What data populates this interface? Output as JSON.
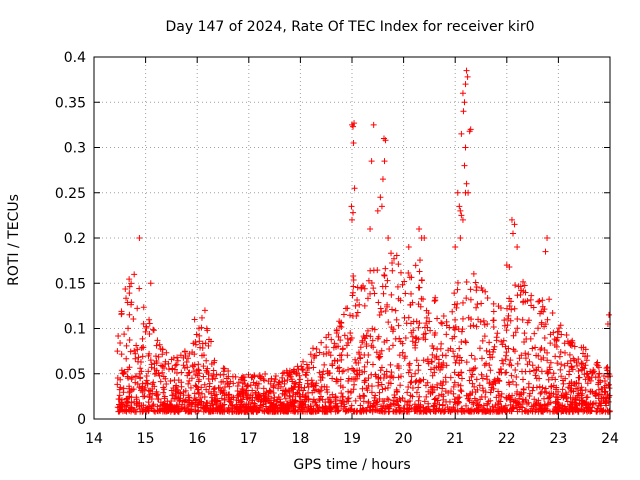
{
  "chart_data": {
    "type": "scatter",
    "title": "Day 147 of 2024, Rate Of TEC Index for receiver kir0",
    "xlabel": "GPS time / hours",
    "ylabel": "ROTI / TECUs",
    "xlim": [
      14,
      24
    ],
    "ylim": [
      0,
      0.4
    ],
    "x_ticks": [
      "14",
      "15",
      "16",
      "17",
      "18",
      "19",
      "20",
      "21",
      "22",
      "23",
      "24"
    ],
    "y_ticks": [
      "0",
      "0.05",
      "0.1",
      "0.15",
      "0.2",
      "0.25",
      "0.3",
      "0.35",
      "0.4"
    ],
    "grid": true,
    "marker": "+",
    "color": "#ff0000",
    "series": [
      {
        "name": "kir0",
        "envelope": {
          "x": [
            14.45,
            14.6,
            14.8,
            15.0,
            15.3,
            15.6,
            15.9,
            16.1,
            16.4,
            16.8,
            17.2,
            17.6,
            18.0,
            18.4,
            18.7,
            18.9,
            19.0,
            19.2,
            19.4,
            19.6,
            19.8,
            20.0,
            20.2,
            20.5,
            20.8,
            21.0,
            21.2,
            21.4,
            21.6,
            21.8,
            22.0,
            22.2,
            22.4,
            22.6,
            22.8,
            23.0,
            23.2,
            23.4,
            23.6,
            23.8,
            24.0
          ],
          "max": [
            0.1,
            0.16,
            0.16,
            0.12,
            0.09,
            0.07,
            0.08,
            0.12,
            0.06,
            0.05,
            0.05,
            0.05,
            0.06,
            0.09,
            0.11,
            0.14,
            0.17,
            0.15,
            0.17,
            0.16,
            0.19,
            0.17,
            0.19,
            0.16,
            0.13,
            0.15,
            0.17,
            0.16,
            0.15,
            0.13,
            0.14,
            0.16,
            0.15,
            0.13,
            0.14,
            0.11,
            0.09,
            0.08,
            0.08,
            0.06,
            0.06
          ]
        },
        "spikes": [
          {
            "x": 14.88,
            "y": 0.2
          },
          {
            "x": 15.1,
            "y": 0.15
          },
          {
            "x": 15.95,
            "y": 0.11
          },
          {
            "x": 16.15,
            "y": 0.12
          },
          {
            "x": 19.0,
            "y": 0.325
          },
          {
            "x": 19.02,
            "y": 0.323
          },
          {
            "x": 19.04,
            "y": 0.327
          },
          {
            "x": 19.03,
            "y": 0.305
          },
          {
            "x": 19.05,
            "y": 0.255
          },
          {
            "x": 18.99,
            "y": 0.235
          },
          {
            "x": 19.02,
            "y": 0.228
          },
          {
            "x": 19.0,
            "y": 0.22
          },
          {
            "x": 19.42,
            "y": 0.325
          },
          {
            "x": 19.38,
            "y": 0.285
          },
          {
            "x": 19.62,
            "y": 0.31
          },
          {
            "x": 19.65,
            "y": 0.308
          },
          {
            "x": 19.6,
            "y": 0.265
          },
          {
            "x": 19.63,
            "y": 0.285
          },
          {
            "x": 19.55,
            "y": 0.245
          },
          {
            "x": 19.58,
            "y": 0.235
          },
          {
            "x": 19.5,
            "y": 0.23
          },
          {
            "x": 19.35,
            "y": 0.21
          },
          {
            "x": 19.7,
            "y": 0.2
          },
          {
            "x": 20.3,
            "y": 0.21
          },
          {
            "x": 20.35,
            "y": 0.2
          },
          {
            "x": 20.4,
            "y": 0.2
          },
          {
            "x": 20.1,
            "y": 0.19
          },
          {
            "x": 21.22,
            "y": 0.385
          },
          {
            "x": 21.24,
            "y": 0.378
          },
          {
            "x": 21.2,
            "y": 0.37
          },
          {
            "x": 21.15,
            "y": 0.36
          },
          {
            "x": 21.18,
            "y": 0.35
          },
          {
            "x": 21.16,
            "y": 0.34
          },
          {
            "x": 21.3,
            "y": 0.32
          },
          {
            "x": 21.28,
            "y": 0.318
          },
          {
            "x": 21.12,
            "y": 0.315
          },
          {
            "x": 21.2,
            "y": 0.3
          },
          {
            "x": 21.18,
            "y": 0.28
          },
          {
            "x": 21.22,
            "y": 0.26
          },
          {
            "x": 21.2,
            "y": 0.25
          },
          {
            "x": 21.25,
            "y": 0.25
          },
          {
            "x": 21.05,
            "y": 0.25
          },
          {
            "x": 21.08,
            "y": 0.235
          },
          {
            "x": 21.1,
            "y": 0.23
          },
          {
            "x": 21.12,
            "y": 0.225
          },
          {
            "x": 21.15,
            "y": 0.22
          },
          {
            "x": 21.0,
            "y": 0.19
          },
          {
            "x": 21.1,
            "y": 0.2
          },
          {
            "x": 22.1,
            "y": 0.22
          },
          {
            "x": 22.15,
            "y": 0.215
          },
          {
            "x": 22.12,
            "y": 0.205
          },
          {
            "x": 22.2,
            "y": 0.19
          },
          {
            "x": 22.78,
            "y": 0.2
          },
          {
            "x": 22.75,
            "y": 0.185
          },
          {
            "x": 22.0,
            "y": 0.17
          },
          {
            "x": 22.05,
            "y": 0.168
          },
          {
            "x": 23.98,
            "y": 0.115
          },
          {
            "x": 23.96,
            "y": 0.105
          }
        ]
      }
    ]
  }
}
